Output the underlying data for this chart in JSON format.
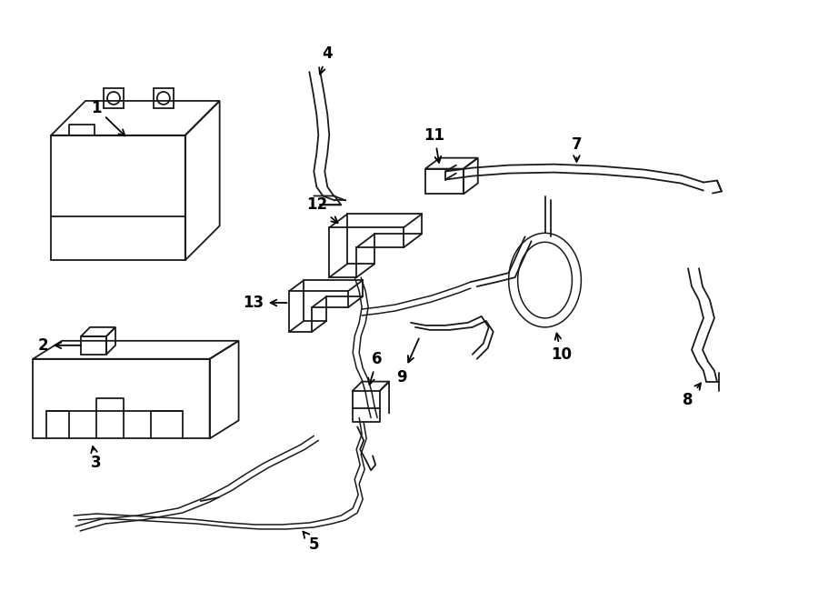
{
  "bg_color": "#ffffff",
  "line_color": "#1a1a1a",
  "fig_width": 9.0,
  "fig_height": 6.61,
  "lw": 1.3
}
